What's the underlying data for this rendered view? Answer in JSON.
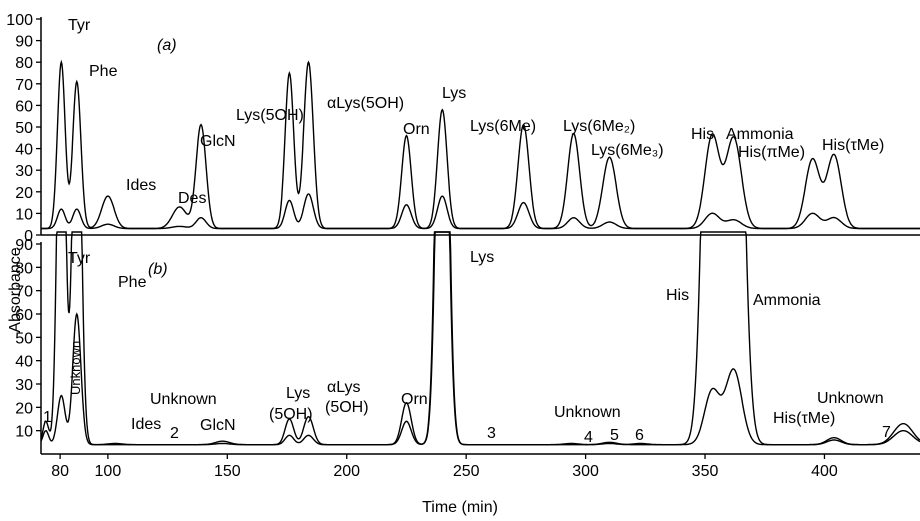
{
  "chart_data": [
    {
      "type": "line",
      "panel_label": "(a)",
      "ylabel": "Absorbance",
      "ylim": [
        0,
        100
      ],
      "yticks": [
        "0",
        "10",
        "20",
        "30",
        "40",
        "50",
        "60",
        "70",
        "80",
        "90",
        "100"
      ],
      "xlim": [
        72,
        440
      ],
      "peaks": [
        {
          "label": "Tyr",
          "x": 80.5,
          "high": 80,
          "low": 12,
          "w": 1.6
        },
        {
          "label": "Phe",
          "x": 87,
          "high": 71,
          "low": 12,
          "w": 1.7
        },
        {
          "label": "Ides",
          "x": 100,
          "high": 18,
          "low": 5,
          "w": 2.6
        },
        {
          "label": "Des",
          "x": 130,
          "high": 13,
          "low": 4,
          "w": 3.0
        },
        {
          "label": "GlcN",
          "x": 139,
          "high": 51,
          "low": 8,
          "w": 2.1
        },
        {
          "label": "Lys(5OH)",
          "x": 176,
          "high": 75,
          "low": 16,
          "w": 1.8
        },
        {
          "label": "αLys(5OH)",
          "x": 184,
          "high": 80,
          "low": 19,
          "w": 2.0
        },
        {
          "label": "Orn",
          "x": 225,
          "high": 46,
          "low": 14,
          "w": 2.0
        },
        {
          "label": "Lys",
          "x": 240,
          "high": 58,
          "low": 18,
          "w": 2.0
        },
        {
          "label": "Lys(6Me)",
          "x": 274,
          "high": 51,
          "low": 15,
          "w": 2.3
        },
        {
          "label": "Lys(6Me2)",
          "x": 295,
          "high": 47,
          "low": 8,
          "w": 2.5
        },
        {
          "label": "Lys(6Me3)",
          "x": 310,
          "high": 36,
          "low": 6,
          "w": 2.8
        },
        {
          "label": "His",
          "x": 353,
          "high": 46,
          "low": 10,
          "w": 3.0
        },
        {
          "label": "Ammonia",
          "x": 362,
          "high": 45,
          "low": 7,
          "w": 3.2
        },
        {
          "label": "His(πMe)",
          "x": 395,
          "high": 35,
          "low": 10,
          "w": 3.0
        },
        {
          "label": "His(τMe)",
          "x": 404,
          "high": 37,
          "low": 8,
          "w": 3.0
        }
      ],
      "labels": {
        "tyr": "Tyr",
        "phe": "Phe",
        "ides": "Ides",
        "des": "Des",
        "glcn": "GlcN",
        "lys5oh": "Lys(5OH)",
        "alys5oh": "αLys(5OH)",
        "orn": "Orn",
        "lys": "Lys",
        "lys6me": "Lys(6Me)",
        "lys6me2": "Lys(6Me₂)",
        "lys6me3": "Lys(6Me₃)",
        "his": "His",
        "ammonia": "Ammonia",
        "hispime": "His(πMe)",
        "histaume": "His(τMe)"
      }
    },
    {
      "type": "line",
      "panel_label": "(b)",
      "xlabel": "Time (min)",
      "ylim": [
        0,
        90
      ],
      "yticks": [
        "10",
        "20",
        "30",
        "40",
        "50",
        "60",
        "70",
        "80",
        "90"
      ],
      "xticks": [
        "80",
        "100",
        "150",
        "200",
        "250",
        "300",
        "350",
        "400"
      ],
      "xlim": [
        72,
        440
      ],
      "peaks": [
        {
          "label": "1",
          "x": 74,
          "high": 14,
          "low": 10,
          "w": 1.2
        },
        {
          "label": "Tyr",
          "x": 80.5,
          "high": 200,
          "low": 25,
          "w": 1.6
        },
        {
          "label": "Phe",
          "x": 87,
          "high": 200,
          "low": 60,
          "w": 1.7
        },
        {
          "label": "Ides",
          "x": 103,
          "high": 4.5,
          "low": 4,
          "w": 3
        },
        {
          "label": "GlcN",
          "x": 148,
          "high": 5.5,
          "low": 4.5,
          "w": 3
        },
        {
          "label": "Lys(5OH)",
          "x": 176,
          "high": 15,
          "low": 8,
          "w": 1.8
        },
        {
          "label": "αLys(5OH)",
          "x": 184,
          "high": 16,
          "low": 8,
          "w": 2.0
        },
        {
          "label": "Orn",
          "x": 225,
          "high": 22,
          "low": 14,
          "w": 2.0
        },
        {
          "label": "Lys",
          "x": 240,
          "high": 300,
          "low": 250,
          "w": 2.2
        },
        {
          "label": "3",
          "x": 259,
          "high": 4,
          "low": 4,
          "w": 2
        },
        {
          "label": "4",
          "x": 294,
          "high": 4.5,
          "low": 4,
          "w": 3
        },
        {
          "label": "5",
          "x": 310,
          "high": 5,
          "low": 4.5,
          "w": 3
        },
        {
          "label": "6",
          "x": 323,
          "high": 4.5,
          "low": 4,
          "w": 3
        },
        {
          "label": "His",
          "x": 353,
          "high": 300,
          "low": 27,
          "w": 3.2
        },
        {
          "label": "Ammonia",
          "x": 362,
          "high": 300,
          "low": 36,
          "w": 3.4
        },
        {
          "label": "His(τMe)",
          "x": 404,
          "high": 7,
          "low": 6,
          "w": 3
        },
        {
          "label": "7",
          "x": 433,
          "high": 13,
          "low": 10,
          "w": 4
        }
      ],
      "labels": {
        "n1": "1",
        "tyr": "Tyr",
        "unknown_vert": "Unknown",
        "phe": "Phe",
        "ides": "Ides",
        "n2": "2",
        "unknown1": "Unknown",
        "glcn": "GlcN",
        "lys5oh_a": "Lys",
        "lys5oh_b": "(5OH)",
        "alys5oh_a": "αLys",
        "alys5oh_b": "(5OH)",
        "orn": "Orn",
        "lys": "Lys",
        "n3": "3",
        "unknown2": "Unknown",
        "n4": "4",
        "n5": "5",
        "n6": "6",
        "his": "His",
        "ammonia": "Ammonia",
        "histaume": "His(τMe)",
        "unknown3": "Unknown",
        "n7": "7"
      }
    }
  ]
}
